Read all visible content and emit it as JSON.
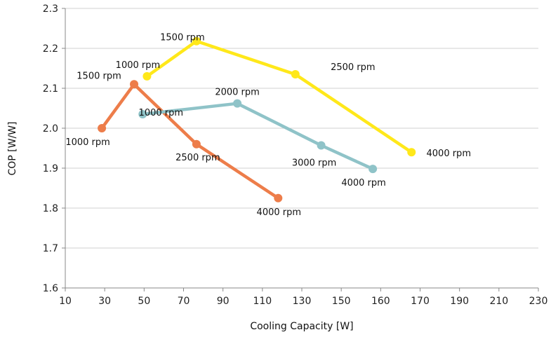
{
  "chart_data": {
    "type": "line",
    "title": "",
    "xlabel": "Cooling Capacity [W]",
    "ylabel": "COP [W/W]",
    "xlim": [
      10,
      230
    ],
    "ylim": [
      1.6,
      2.3
    ],
    "xticks": [
      10,
      30,
      50,
      70,
      90,
      110,
      130,
      150,
      160,
      170,
      190,
      210,
      230
    ],
    "yticks": [
      1.6,
      1.7,
      1.8,
      1.9,
      2.0,
      2.1,
      2.2,
      2.3
    ],
    "ytick_labels": [
      "1.6",
      "1.7",
      "1.8",
      "1.9",
      "2.0",
      "2.1",
      "2.2",
      "2.3"
    ],
    "grid": "horizontal",
    "legend": "none",
    "series": [
      {
        "color": "#ed7d4a",
        "points": [
          {
            "x": 27,
            "y": 2.0,
            "label": "1000 rpm"
          },
          {
            "x": 42,
            "y": 2.11,
            "label": "1500 rpm"
          },
          {
            "x": 71,
            "y": 1.96,
            "label": "2500 rpm"
          },
          {
            "x": 109,
            "y": 1.825,
            "label": "4000 rpm"
          }
        ]
      },
      {
        "color": "#8fc3c8",
        "points": [
          {
            "x": 46,
            "y": 2.035,
            "label": "1000 rpm"
          },
          {
            "x": 90,
            "y": 2.062,
            "label": "2000 rpm"
          },
          {
            "x": 129,
            "y": 1.957,
            "label": "3000 rpm"
          },
          {
            "x": 153,
            "y": 1.898,
            "label": "4000 rpm"
          }
        ]
      },
      {
        "color": "#ffe81a",
        "points": [
          {
            "x": 48,
            "y": 2.13,
            "label": "1000 rpm"
          },
          {
            "x": 71,
            "y": 2.218,
            "label": "1500 rpm"
          },
          {
            "x": 117,
            "y": 2.135,
            "label": "2500 rpm"
          },
          {
            "x": 171,
            "y": 1.94,
            "label": "4000 rpm"
          }
        ]
      }
    ]
  }
}
